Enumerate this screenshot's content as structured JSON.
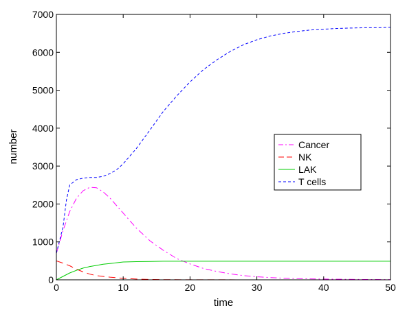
{
  "chart_data": {
    "type": "line",
    "title": "",
    "xlabel": "time",
    "ylabel": "number",
    "xlim": [
      0,
      50
    ],
    "ylim": [
      0,
      7000
    ],
    "xticks": [
      0,
      10,
      20,
      30,
      40,
      50
    ],
    "yticks": [
      0,
      1000,
      2000,
      3000,
      4000,
      5000,
      6000,
      7000
    ],
    "grid": false,
    "legend_position": "right",
    "series": [
      {
        "name": "Cancer",
        "color": "#ff00ff",
        "dash": "dash-dot",
        "x": [
          0,
          1,
          2,
          3,
          4,
          5,
          6,
          7,
          8,
          10,
          12,
          14,
          16,
          18,
          20,
          22,
          24,
          26,
          28,
          30,
          33,
          36,
          40,
          45,
          50
        ],
        "y": [
          700,
          1300,
          1800,
          2150,
          2350,
          2440,
          2430,
          2320,
          2160,
          1760,
          1360,
          1030,
          780,
          560,
          420,
          300,
          220,
          160,
          110,
          80,
          50,
          30,
          20,
          10,
          5
        ]
      },
      {
        "name": "NK",
        "color": "#ff0000",
        "dash": "long-dash",
        "x": [
          0,
          1,
          2,
          3,
          4,
          5,
          6,
          8,
          10,
          12,
          14,
          16,
          20,
          25,
          30,
          40,
          50
        ],
        "y": [
          500,
          440,
          370,
          280,
          210,
          150,
          110,
          70,
          40,
          20,
          10,
          5,
          2,
          1,
          0,
          0,
          0
        ]
      },
      {
        "name": "LAK",
        "color": "#00cc00",
        "dash": "solid",
        "x": [
          0,
          1,
          2,
          3,
          4,
          5,
          6,
          7,
          8,
          9,
          10,
          12,
          14,
          16,
          20,
          30,
          40,
          50
        ],
        "y": [
          0,
          90,
          180,
          250,
          310,
          350,
          380,
          410,
          430,
          450,
          470,
          480,
          485,
          490,
          490,
          490,
          490,
          490
        ]
      },
      {
        "name": "T cells",
        "color": "#0000ff",
        "dash": "dashed",
        "x": [
          0,
          1,
          1.5,
          2,
          3,
          4,
          5,
          6,
          7,
          8,
          9,
          10,
          12,
          14,
          16,
          18,
          20,
          22,
          24,
          26,
          28,
          30,
          32,
          34,
          36,
          38,
          40,
          42,
          44,
          46,
          48,
          50
        ],
        "y": [
          700,
          1400,
          2100,
          2500,
          2640,
          2680,
          2700,
          2700,
          2730,
          2800,
          2900,
          3060,
          3470,
          3950,
          4440,
          4850,
          5220,
          5540,
          5800,
          6020,
          6200,
          6330,
          6430,
          6500,
          6550,
          6590,
          6610,
          6630,
          6640,
          6650,
          6650,
          6660
        ]
      }
    ]
  }
}
